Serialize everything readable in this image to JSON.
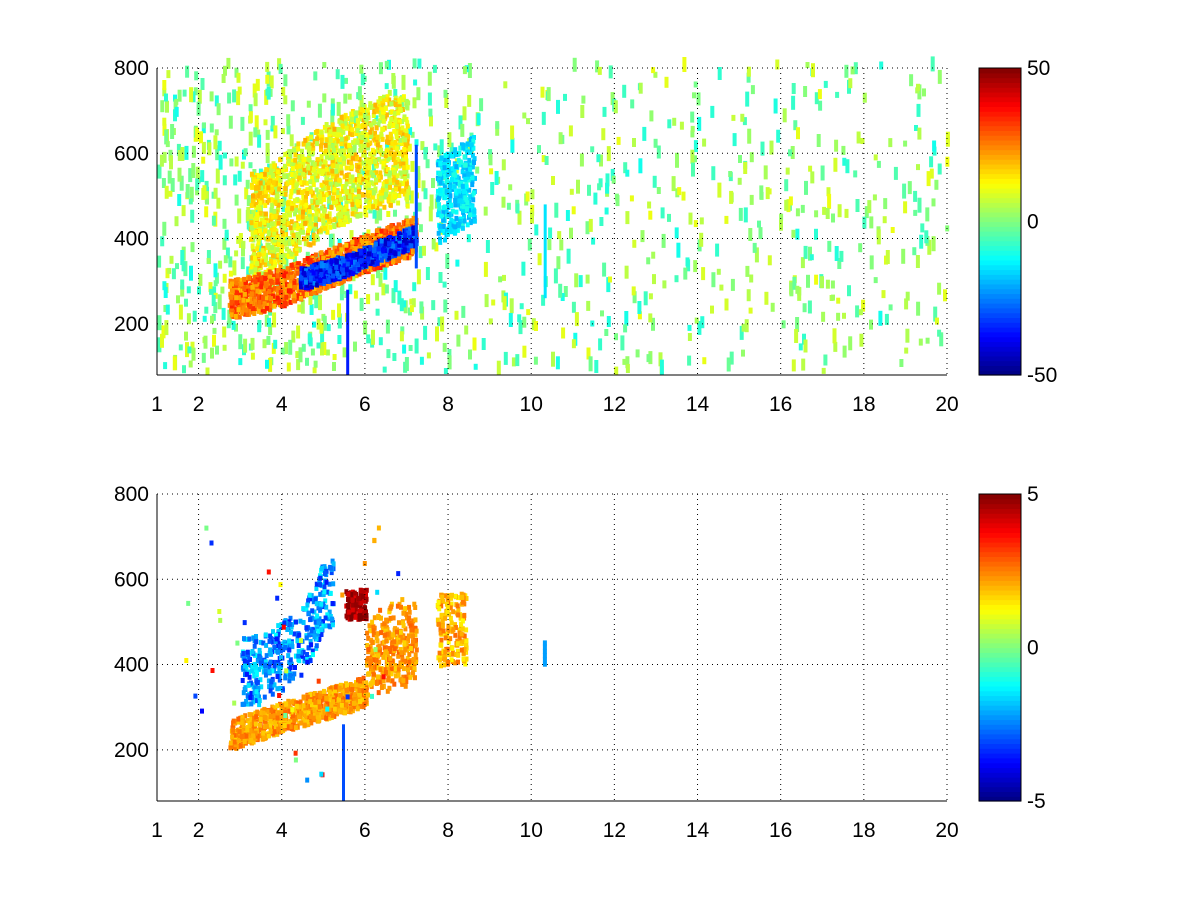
{
  "chart_data": [
    {
      "type": "heatmap",
      "x_ticks": [
        1,
        2,
        4,
        6,
        8,
        10,
        12,
        14,
        16,
        18,
        20
      ],
      "x_tick_labels": [
        "1",
        "2",
        "4",
        "6",
        "8",
        "10",
        "12",
        "14",
        "16",
        "18",
        "20"
      ],
      "y_ticks": [
        200,
        400,
        600,
        800
      ],
      "y_tick_labels": [
        "200",
        "400",
        "600",
        "800"
      ],
      "xlim": [
        1,
        20
      ],
      "ylim": [
        80,
        800
      ],
      "grid": true,
      "colormap": "jet",
      "clim": [
        -50,
        50
      ],
      "colorbar_ticks": [
        -50,
        0,
        50
      ],
      "colorbar_tick_labels": [
        "-50",
        "0",
        "50"
      ],
      "features": [
        {
          "name": "ridge",
          "x": [
            2.8,
            4,
            5,
            6,
            7.2
          ],
          "y": [
            250,
            280,
            320,
            360,
            400
          ],
          "value": 30
        },
        {
          "name": "low-band",
          "x": [
            4.5,
            5.5,
            6.5,
            7.2
          ],
          "y": [
            300,
            330,
            370,
            400
          ],
          "value": -40
        },
        {
          "name": "upper-cloud",
          "x": [
            3.5,
            4.5,
            5.5,
            6.5
          ],
          "y": [
            420,
            500,
            560,
            600
          ],
          "value": 12
        },
        {
          "name": "cloud-8",
          "x": [
            7.8,
            8.5
          ],
          "y": [
            400,
            520
          ],
          "value": -15
        }
      ]
    },
    {
      "type": "heatmap",
      "x_ticks": [
        1,
        2,
        4,
        6,
        8,
        10,
        12,
        14,
        16,
        18,
        20
      ],
      "x_tick_labels": [
        "1",
        "2",
        "4",
        "6",
        "8",
        "10",
        "12",
        "14",
        "16",
        "18",
        "20"
      ],
      "y_ticks": [
        200,
        400,
        600,
        800
      ],
      "y_tick_labels": [
        "200",
        "400",
        "600",
        "800"
      ],
      "xlim": [
        1,
        20
      ],
      "ylim": [
        80,
        800
      ],
      "grid": true,
      "colormap": "jet",
      "clim": [
        -5,
        5
      ],
      "colorbar_ticks": [
        -5,
        0,
        5
      ],
      "colorbar_tick_labels": [
        "-5",
        "0",
        "5"
      ],
      "features": [
        {
          "name": "ridge",
          "x": [
            2.8,
            4,
            5,
            6,
            7.2
          ],
          "y": [
            230,
            270,
            300,
            330,
            380
          ],
          "value": 2
        },
        {
          "name": "blue-cloud",
          "x": [
            3.5,
            4.5,
            5.0
          ],
          "y": [
            380,
            450,
            560
          ],
          "value": -3
        },
        {
          "name": "red-patch",
          "x": [
            5.5,
            6.0
          ],
          "y": [
            510,
            570
          ],
          "value": 5
        },
        {
          "name": "cloud-8",
          "x": [
            7.8,
            8.4
          ],
          "y": [
            400,
            550
          ],
          "value": 2
        },
        {
          "name": "spot-10",
          "x": [
            10.3
          ],
          "y": [
            420
          ],
          "value": -2
        }
      ]
    }
  ]
}
